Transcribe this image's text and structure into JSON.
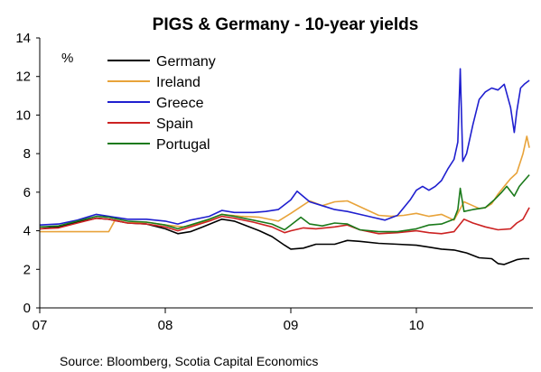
{
  "chart_data": {
    "type": "line",
    "title": "PIGS & Germany - 10-year yields",
    "unit_label": "%",
    "source": "Source: Bloomberg, Scotia Capital Economics",
    "xlabel": "",
    "ylabel": "",
    "ylim": [
      0,
      14
    ],
    "y_ticks": [
      "0",
      "2",
      "4",
      "6",
      "8",
      "10",
      "12",
      "14"
    ],
    "x_ticks": [
      "07",
      "08",
      "09",
      "10"
    ],
    "xlim": [
      2007.0,
      2010.9
    ],
    "grid": false,
    "legend_position": "top-left",
    "series": [
      {
        "name": "Germany",
        "color": "#000000",
        "points": [
          [
            2007.0,
            4.1
          ],
          [
            2007.15,
            4.2
          ],
          [
            2007.3,
            4.45
          ],
          [
            2007.45,
            4.65
          ],
          [
            2007.55,
            4.6
          ],
          [
            2007.7,
            4.4
          ],
          [
            2007.85,
            4.35
          ],
          [
            2008.0,
            4.1
          ],
          [
            2008.1,
            3.85
          ],
          [
            2008.2,
            3.95
          ],
          [
            2008.3,
            4.2
          ],
          [
            2008.45,
            4.6
          ],
          [
            2008.55,
            4.5
          ],
          [
            2008.65,
            4.25
          ],
          [
            2008.75,
            4.0
          ],
          [
            2008.85,
            3.7
          ],
          [
            2008.95,
            3.25
          ],
          [
            2009.0,
            3.05
          ],
          [
            2009.1,
            3.1
          ],
          [
            2009.2,
            3.3
          ],
          [
            2009.35,
            3.3
          ],
          [
            2009.45,
            3.5
          ],
          [
            2009.55,
            3.45
          ],
          [
            2009.7,
            3.35
          ],
          [
            2009.85,
            3.3
          ],
          [
            2010.0,
            3.25
          ],
          [
            2010.1,
            3.15
          ],
          [
            2010.2,
            3.05
          ],
          [
            2010.3,
            3.0
          ],
          [
            2010.4,
            2.85
          ],
          [
            2010.5,
            2.6
          ],
          [
            2010.6,
            2.55
          ],
          [
            2010.65,
            2.3
          ],
          [
            2010.7,
            2.25
          ],
          [
            2010.8,
            2.5
          ],
          [
            2010.85,
            2.55
          ],
          [
            2010.9,
            2.55
          ]
        ]
      },
      {
        "name": "Ireland",
        "color": "#e8a33a",
        "points": [
          [
            2007.0,
            3.95
          ],
          [
            2007.2,
            3.95
          ],
          [
            2007.4,
            3.95
          ],
          [
            2007.55,
            3.95
          ],
          [
            2007.6,
            4.55
          ],
          [
            2007.7,
            4.4
          ],
          [
            2007.85,
            4.45
          ],
          [
            2008.0,
            4.3
          ],
          [
            2008.15,
            4.2
          ],
          [
            2008.3,
            4.45
          ],
          [
            2008.45,
            4.85
          ],
          [
            2008.6,
            4.75
          ],
          [
            2008.75,
            4.7
          ],
          [
            2008.9,
            4.5
          ],
          [
            2009.0,
            4.9
          ],
          [
            2009.08,
            5.25
          ],
          [
            2009.15,
            5.55
          ],
          [
            2009.25,
            5.3
          ],
          [
            2009.35,
            5.5
          ],
          [
            2009.45,
            5.55
          ],
          [
            2009.55,
            5.25
          ],
          [
            2009.7,
            4.8
          ],
          [
            2009.8,
            4.75
          ],
          [
            2009.9,
            4.8
          ],
          [
            2010.0,
            4.9
          ],
          [
            2010.1,
            4.75
          ],
          [
            2010.2,
            4.85
          ],
          [
            2010.3,
            4.55
          ],
          [
            2010.38,
            5.5
          ],
          [
            2010.45,
            5.3
          ],
          [
            2010.5,
            5.15
          ],
          [
            2010.55,
            5.2
          ],
          [
            2010.6,
            5.4
          ],
          [
            2010.65,
            5.9
          ],
          [
            2010.7,
            6.3
          ],
          [
            2010.75,
            6.7
          ],
          [
            2010.8,
            7.0
          ],
          [
            2010.85,
            8.0
          ],
          [
            2010.88,
            8.9
          ],
          [
            2010.9,
            8.3
          ]
        ]
      },
      {
        "name": "Greece",
        "color": "#1f1fcf",
        "points": [
          [
            2007.0,
            4.3
          ],
          [
            2007.15,
            4.35
          ],
          [
            2007.3,
            4.55
          ],
          [
            2007.45,
            4.85
          ],
          [
            2007.55,
            4.75
          ],
          [
            2007.7,
            4.6
          ],
          [
            2007.85,
            4.6
          ],
          [
            2008.0,
            4.5
          ],
          [
            2008.1,
            4.35
          ],
          [
            2008.2,
            4.55
          ],
          [
            2008.35,
            4.75
          ],
          [
            2008.45,
            5.05
          ],
          [
            2008.55,
            4.95
          ],
          [
            2008.7,
            4.95
          ],
          [
            2008.8,
            5.0
          ],
          [
            2008.9,
            5.1
          ],
          [
            2009.0,
            5.6
          ],
          [
            2009.05,
            6.05
          ],
          [
            2009.15,
            5.5
          ],
          [
            2009.25,
            5.3
          ],
          [
            2009.35,
            5.1
          ],
          [
            2009.45,
            5.0
          ],
          [
            2009.55,
            4.85
          ],
          [
            2009.65,
            4.7
          ],
          [
            2009.75,
            4.55
          ],
          [
            2009.85,
            4.8
          ],
          [
            2009.95,
            5.6
          ],
          [
            2010.0,
            6.1
          ],
          [
            2010.05,
            6.3
          ],
          [
            2010.1,
            6.1
          ],
          [
            2010.15,
            6.3
          ],
          [
            2010.2,
            6.6
          ],
          [
            2010.25,
            7.2
          ],
          [
            2010.3,
            7.7
          ],
          [
            2010.33,
            8.6
          ],
          [
            2010.35,
            12.4
          ],
          [
            2010.37,
            7.6
          ],
          [
            2010.4,
            8.0
          ],
          [
            2010.45,
            9.5
          ],
          [
            2010.5,
            10.8
          ],
          [
            2010.55,
            11.2
          ],
          [
            2010.6,
            11.4
          ],
          [
            2010.65,
            11.3
          ],
          [
            2010.7,
            11.6
          ],
          [
            2010.75,
            10.4
          ],
          [
            2010.78,
            9.1
          ],
          [
            2010.8,
            10.2
          ],
          [
            2010.83,
            11.4
          ],
          [
            2010.86,
            11.6
          ],
          [
            2010.9,
            11.8
          ]
        ]
      },
      {
        "name": "Spain",
        "color": "#cc2222",
        "points": [
          [
            2007.0,
            4.1
          ],
          [
            2007.15,
            4.15
          ],
          [
            2007.3,
            4.4
          ],
          [
            2007.45,
            4.65
          ],
          [
            2007.55,
            4.6
          ],
          [
            2007.7,
            4.4
          ],
          [
            2007.85,
            4.35
          ],
          [
            2008.0,
            4.2
          ],
          [
            2008.1,
            4.0
          ],
          [
            2008.2,
            4.2
          ],
          [
            2008.35,
            4.5
          ],
          [
            2008.45,
            4.75
          ],
          [
            2008.55,
            4.65
          ],
          [
            2008.7,
            4.45
          ],
          [
            2008.85,
            4.2
          ],
          [
            2008.95,
            3.9
          ],
          [
            2009.0,
            4.0
          ],
          [
            2009.1,
            4.15
          ],
          [
            2009.2,
            4.1
          ],
          [
            2009.35,
            4.2
          ],
          [
            2009.45,
            4.3
          ],
          [
            2009.55,
            4.05
          ],
          [
            2009.7,
            3.85
          ],
          [
            2009.85,
            3.9
          ],
          [
            2010.0,
            4.0
          ],
          [
            2010.1,
            3.9
          ],
          [
            2010.2,
            3.85
          ],
          [
            2010.3,
            3.95
          ],
          [
            2010.38,
            4.6
          ],
          [
            2010.45,
            4.4
          ],
          [
            2010.55,
            4.2
          ],
          [
            2010.65,
            4.05
          ],
          [
            2010.75,
            4.1
          ],
          [
            2010.8,
            4.4
          ],
          [
            2010.85,
            4.6
          ],
          [
            2010.9,
            5.2
          ]
        ]
      },
      {
        "name": "Portugal",
        "color": "#1b7a1b",
        "points": [
          [
            2007.0,
            4.2
          ],
          [
            2007.15,
            4.25
          ],
          [
            2007.3,
            4.5
          ],
          [
            2007.45,
            4.75
          ],
          [
            2007.55,
            4.7
          ],
          [
            2007.7,
            4.5
          ],
          [
            2007.85,
            4.45
          ],
          [
            2008.0,
            4.3
          ],
          [
            2008.1,
            4.1
          ],
          [
            2008.2,
            4.3
          ],
          [
            2008.35,
            4.6
          ],
          [
            2008.45,
            4.85
          ],
          [
            2008.55,
            4.75
          ],
          [
            2008.7,
            4.55
          ],
          [
            2008.85,
            4.35
          ],
          [
            2008.95,
            4.05
          ],
          [
            2009.0,
            4.3
          ],
          [
            2009.08,
            4.7
          ],
          [
            2009.15,
            4.35
          ],
          [
            2009.25,
            4.25
          ],
          [
            2009.35,
            4.4
          ],
          [
            2009.45,
            4.35
          ],
          [
            2009.55,
            4.05
          ],
          [
            2009.7,
            3.95
          ],
          [
            2009.85,
            3.95
          ],
          [
            2010.0,
            4.1
          ],
          [
            2010.1,
            4.3
          ],
          [
            2010.2,
            4.35
          ],
          [
            2010.3,
            4.6
          ],
          [
            2010.33,
            5.1
          ],
          [
            2010.35,
            6.2
          ],
          [
            2010.38,
            5.0
          ],
          [
            2010.45,
            5.1
          ],
          [
            2010.55,
            5.2
          ],
          [
            2010.62,
            5.6
          ],
          [
            2010.68,
            6.0
          ],
          [
            2010.72,
            6.3
          ],
          [
            2010.78,
            5.8
          ],
          [
            2010.82,
            6.3
          ],
          [
            2010.86,
            6.6
          ],
          [
            2010.9,
            6.9
          ]
        ]
      }
    ]
  }
}
